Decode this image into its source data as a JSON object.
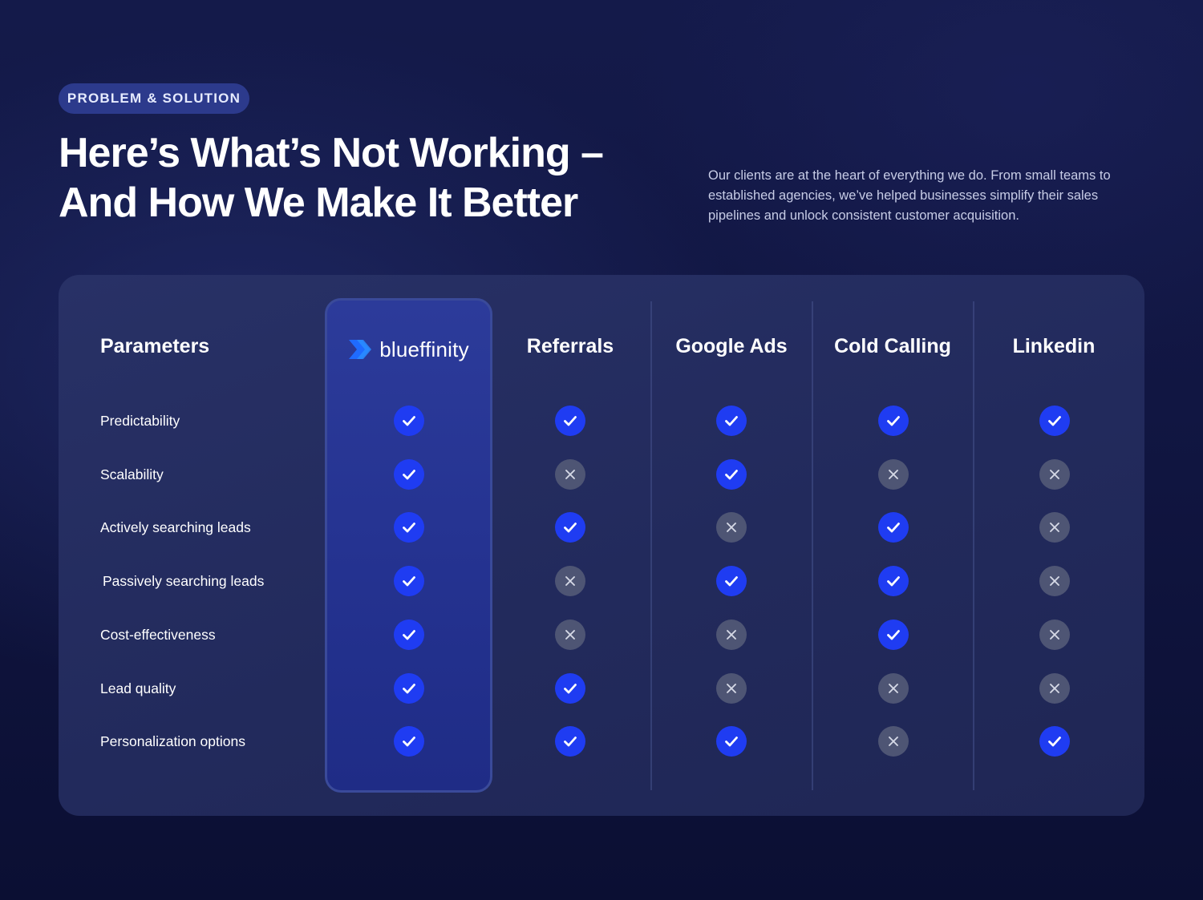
{
  "badge": "PROBLEM & SOLUTION",
  "title": {
    "line1": "Here’s What’s Not Working –",
    "line2": "And How We Make It Better"
  },
  "description": "Our clients are at the heart of everything we do. From small teams to established agencies, we’ve helped businesses simplify their sales pipelines and unlock consistent customer acquisition.",
  "table": {
    "parameters_header": "Parameters",
    "brand": {
      "name": "blueffinity",
      "icon": "blueffinity-logo-icon",
      "accent": "#1f3cf2"
    },
    "columns": [
      "blueffinity",
      "Referrals",
      "Google Ads",
      "Cold Calling",
      "Linkedin"
    ],
    "rows": [
      {
        "label": "Predictability",
        "values": [
          true,
          true,
          true,
          true,
          true
        ]
      },
      {
        "label": "Scalability",
        "values": [
          true,
          false,
          true,
          false,
          false
        ]
      },
      {
        "label": "Actively searching leads",
        "values": [
          true,
          true,
          false,
          true,
          false
        ]
      },
      {
        "label": "Passively searching leads",
        "values": [
          true,
          false,
          true,
          true,
          false
        ]
      },
      {
        "label": "Cost-effectiveness",
        "values": [
          true,
          false,
          false,
          true,
          false
        ]
      },
      {
        "label": "Lead quality",
        "values": [
          true,
          true,
          false,
          false,
          false
        ]
      },
      {
        "label": "Personalization options",
        "values": [
          true,
          true,
          true,
          false,
          true
        ]
      }
    ],
    "icons": {
      "yes": "check-icon",
      "no": "cross-icon"
    },
    "colors": {
      "yes": "#1f3cf2",
      "no": "#4e5574"
    }
  }
}
